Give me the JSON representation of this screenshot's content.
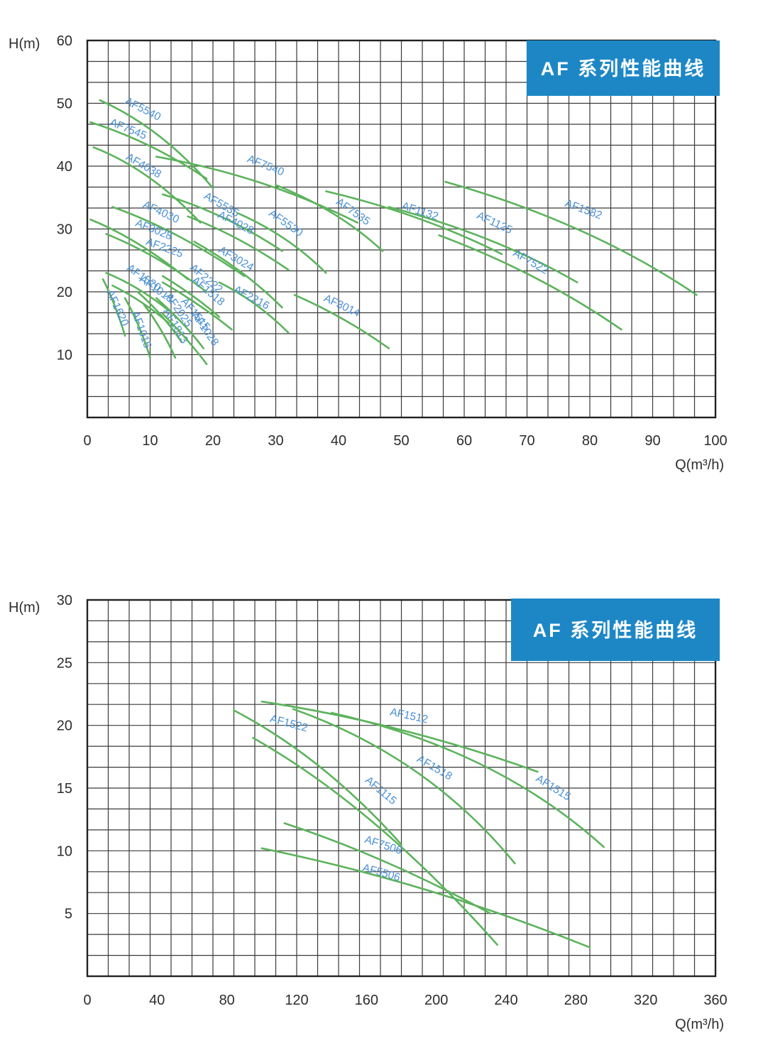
{
  "page_title": "AF 系列性能曲线",
  "colors": {
    "curve_green": "#5cb35c",
    "curve_label_blue": "#4a90d4",
    "grid_line": "#3a3a3a",
    "grid_border": "#222222",
    "axis_text": "#2d2d2d",
    "banner_bg": "#1d87c6",
    "banner_text": "#ffffff",
    "background": "#ffffff"
  },
  "chart_data": [
    {
      "type": "line",
      "banner_title": "AF 系列性能曲线",
      "xlabel": "Q(m³/h)",
      "ylabel": "H(m)",
      "xlim": [
        0,
        100
      ],
      "ylim": [
        0,
        60
      ],
      "x_ticks": [
        0,
        10,
        20,
        30,
        40,
        50,
        60,
        70,
        80,
        90,
        100
      ],
      "y_ticks": [
        10,
        20,
        30,
        40,
        50,
        60
      ],
      "grid": "on",
      "legend": "labels-on-curves",
      "series": [
        {
          "name": "AF5540",
          "points": [
            [
              2,
              50.5
            ],
            [
              12,
              46
            ],
            [
              20,
              36.5
            ]
          ],
          "label_xy": [
            8.6,
            48.6
          ],
          "label_rot": 27
        },
        {
          "name": "AF7545",
          "points": [
            [
              0.5,
              47
            ],
            [
              10,
              44
            ],
            [
              19,
              38
            ]
          ],
          "label_xy": [
            6.3,
            45.4
          ],
          "label_rot": 22
        },
        {
          "name": "AF4038",
          "points": [
            [
              1,
              43
            ],
            [
              10,
              39.5
            ],
            [
              18,
              31
            ]
          ],
          "label_xy": [
            8.7,
            39.6
          ],
          "label_rot": 30
        },
        {
          "name": "AF7540",
          "points": [
            [
              11,
              41.5
            ],
            [
              28,
              38.5
            ],
            [
              43,
              31
            ]
          ],
          "label_xy": [
            28.2,
            39.6
          ],
          "label_rot": 22
        },
        {
          "name": "AF5535",
          "points": [
            [
              12,
              35.5
            ],
            [
              22,
              32.5
            ],
            [
              31,
              26.5
            ]
          ],
          "label_xy": [
            21.1,
            33.4
          ],
          "label_rot": 30
        },
        {
          "name": "AF4030",
          "points": [
            [
              4,
              33.5
            ],
            [
              14,
              30
            ],
            [
              25,
              22.5
            ]
          ],
          "label_xy": [
            11.5,
            32.2
          ],
          "label_rot": 25
        },
        {
          "name": "AF3028",
          "points": [
            [
              0.5,
              31.5
            ],
            [
              8,
              28.5
            ],
            [
              16,
              22
            ]
          ],
          "label_xy": [
            10.4,
            29.4
          ],
          "label_rot": 22
        },
        {
          "name": "AF4028",
          "points": [
            [
              16,
              32
            ],
            [
              24,
              29
            ],
            [
              32,
              23.5
            ]
          ],
          "label_xy": [
            23.4,
            30.5
          ],
          "label_rot": 27
        },
        {
          "name": "AF5530",
          "points": [
            [
              24,
              32.5
            ],
            [
              32,
              29
            ],
            [
              38,
              23
            ]
          ],
          "label_xy": [
            31.3,
            30.5
          ],
          "label_rot": 35
        },
        {
          "name": "AF7535",
          "points": [
            [
              30,
              37
            ],
            [
              40,
              33
            ],
            [
              47,
              26.5
            ]
          ],
          "label_xy": [
            42,
            32.3
          ],
          "label_rot": 35
        },
        {
          "name": "AF1132",
          "points": [
            [
              38,
              36
            ],
            [
              53,
              32.5
            ],
            [
              66,
              26
            ]
          ],
          "label_xy": [
            52.8,
            32.3
          ],
          "label_rot": 18
        },
        {
          "name": "AF1125",
          "points": [
            [
              48,
              33.5
            ],
            [
              65,
              29
            ],
            [
              78,
              21.5
            ]
          ],
          "label_xy": [
            64.6,
            30.5
          ],
          "label_rot": 25
        },
        {
          "name": "AF1582",
          "points": [
            [
              57,
              37.5
            ],
            [
              80,
              31
            ],
            [
              97,
              19.5
            ]
          ],
          "label_xy": [
            78.8,
            32.6
          ],
          "label_rot": 20
        },
        {
          "name": "AF7522",
          "points": [
            [
              56,
              29
            ],
            [
              72,
              23
            ],
            [
              85,
              14
            ]
          ],
          "label_xy": [
            70.3,
            24.3
          ],
          "label_rot": 30
        },
        {
          "name": "AF2225",
          "points": [
            [
              3,
              29.2
            ],
            [
              11,
              26
            ],
            [
              19,
              20
            ]
          ],
          "label_xy": [
            12.1,
            26.5
          ],
          "label_rot": 20
        },
        {
          "name": "AF3024",
          "points": [
            [
              17,
              28
            ],
            [
              25,
              23.5
            ],
            [
              31,
              17.5
            ]
          ],
          "label_xy": [
            23.4,
            24.8
          ],
          "label_rot": 30
        },
        {
          "name": "AF2216",
          "points": [
            [
              21,
              21.5
            ],
            [
              27,
              18.5
            ],
            [
              32,
              13.5
            ]
          ],
          "label_xy": [
            25.9,
            18.6
          ],
          "label_rot": 28
        },
        {
          "name": "AF3014",
          "points": [
            [
              33,
              19.5
            ],
            [
              41,
              16
            ],
            [
              48,
              11
            ]
          ],
          "label_xy": [
            40.3,
            17.3
          ],
          "label_rot": 25
        },
        {
          "name": "AF1520",
          "points": [
            [
              3,
              23
            ],
            [
              8,
              21
            ],
            [
              13,
              17
            ]
          ],
          "label_xy": [
            8.7,
            21.8
          ],
          "label_rot": 35
        },
        {
          "name": "AF1018",
          "points": [
            [
              4,
              21
            ],
            [
              9,
              18.5
            ],
            [
              13,
              15
            ]
          ],
          "label_xy": [
            10.7,
            20
          ],
          "label_rot": 35
        },
        {
          "name": "AF1620",
          "points": [
            [
              2.5,
              22
            ],
            [
              4.5,
              18
            ],
            [
              6,
              13
            ]
          ],
          "label_xy": [
            4.3,
            17.2
          ],
          "label_rot": 65
        },
        {
          "name": "AF2025",
          "points": [
            [
              8,
              20
            ],
            [
              12,
              16.5
            ],
            [
              15,
              12
            ]
          ],
          "label_xy": [
            14.1,
            16.8
          ],
          "label_rot": 55
        },
        {
          "name": "AF1015",
          "points": [
            [
              6,
              19
            ],
            [
              8.5,
              14.5
            ],
            [
              10,
              9.5
            ]
          ],
          "label_xy": [
            8.1,
            13.8
          ],
          "label_rot": 70
        },
        {
          "name": "AF1813",
          "points": [
            [
              9,
              18
            ],
            [
              12,
              14
            ],
            [
              14,
              9.5
            ]
          ],
          "label_xy": [
            13.6,
            14.3
          ],
          "label_rot": 60
        },
        {
          "name": "AF1515",
          "points": [
            [
              11,
              19
            ],
            [
              15.5,
              15
            ],
            [
              18.5,
              11
            ]
          ],
          "label_xy": [
            16.8,
            16.1
          ],
          "label_rot": 50
        },
        {
          "name": "AF1028",
          "points": [
            [
              12,
              16.5
            ],
            [
              16,
              12.5
            ],
            [
              19,
              8.5
            ]
          ],
          "label_xy": [
            18.3,
            13.8
          ],
          "label_rot": 55
        },
        {
          "name": "AF2222",
          "points": [
            [
              12,
              22.5
            ],
            [
              17,
              19.5
            ],
            [
              21,
              16
            ]
          ],
          "label_xy": [
            18.6,
            21.7
          ],
          "label_rot": 40
        },
        {
          "name": "AF1518",
          "points": [
            [
              12,
              21.5
            ],
            [
              18,
              18
            ],
            [
              23,
              14
            ]
          ],
          "label_xy": [
            18.9,
            19.7
          ],
          "label_rot": 40
        }
      ]
    },
    {
      "type": "line",
      "banner_title": "AF 系列性能曲线",
      "xlabel": "Q(m³/h)",
      "ylabel": "H(m)",
      "xlim": [
        0,
        360
      ],
      "ylim": [
        0,
        30
      ],
      "x_ticks": [
        0,
        40,
        80,
        120,
        160,
        200,
        240,
        280,
        320,
        360
      ],
      "y_ticks": [
        5,
        10,
        15,
        20,
        25,
        30
      ],
      "grid": "on",
      "legend": "labels-on-curves",
      "series": [
        {
          "name": "AF1522",
          "points": [
            [
              84,
              21.2
            ],
            [
              135,
              17.5
            ],
            [
              180,
              10.5
            ]
          ],
          "label_xy": [
            115,
            19.9
          ],
          "label_rot": 15
        },
        {
          "name": "AF1512",
          "points": [
            [
              100,
              21.9
            ],
            [
              180,
              20.2
            ],
            [
              258,
              16.3
            ]
          ],
          "label_xy": [
            184,
            20.5
          ],
          "label_rot": 12
        },
        {
          "name": "AF1518",
          "points": [
            [
              118,
              21.3
            ],
            [
              195,
              17.5
            ],
            [
              245,
              9
            ]
          ],
          "label_xy": [
            198,
            16.4
          ],
          "label_rot": 30
        },
        {
          "name": "AF1515",
          "points": [
            [
              140,
              21
            ],
            [
              235,
              18
            ],
            [
              296,
              10.3
            ]
          ],
          "label_xy": [
            266,
            14.8
          ],
          "label_rot": 32
        },
        {
          "name": "AF1115",
          "points": [
            [
              95,
              19
            ],
            [
              165,
              13.5
            ],
            [
              235,
              2.5
            ]
          ],
          "label_xy": [
            167,
            14.6
          ],
          "label_rot": 40
        },
        {
          "name": "AF7506",
          "points": [
            [
              113,
              12.2
            ],
            [
              172,
              9.5
            ],
            [
              231,
              5
            ]
          ],
          "label_xy": [
            169,
            10.2
          ],
          "label_rot": 18
        },
        {
          "name": "AF5506",
          "points": [
            [
              100,
              10.2
            ],
            [
              195,
              7.5
            ],
            [
              288,
              2.3
            ]
          ],
          "label_xy": [
            168,
            8
          ],
          "label_rot": 16
        }
      ]
    }
  ]
}
